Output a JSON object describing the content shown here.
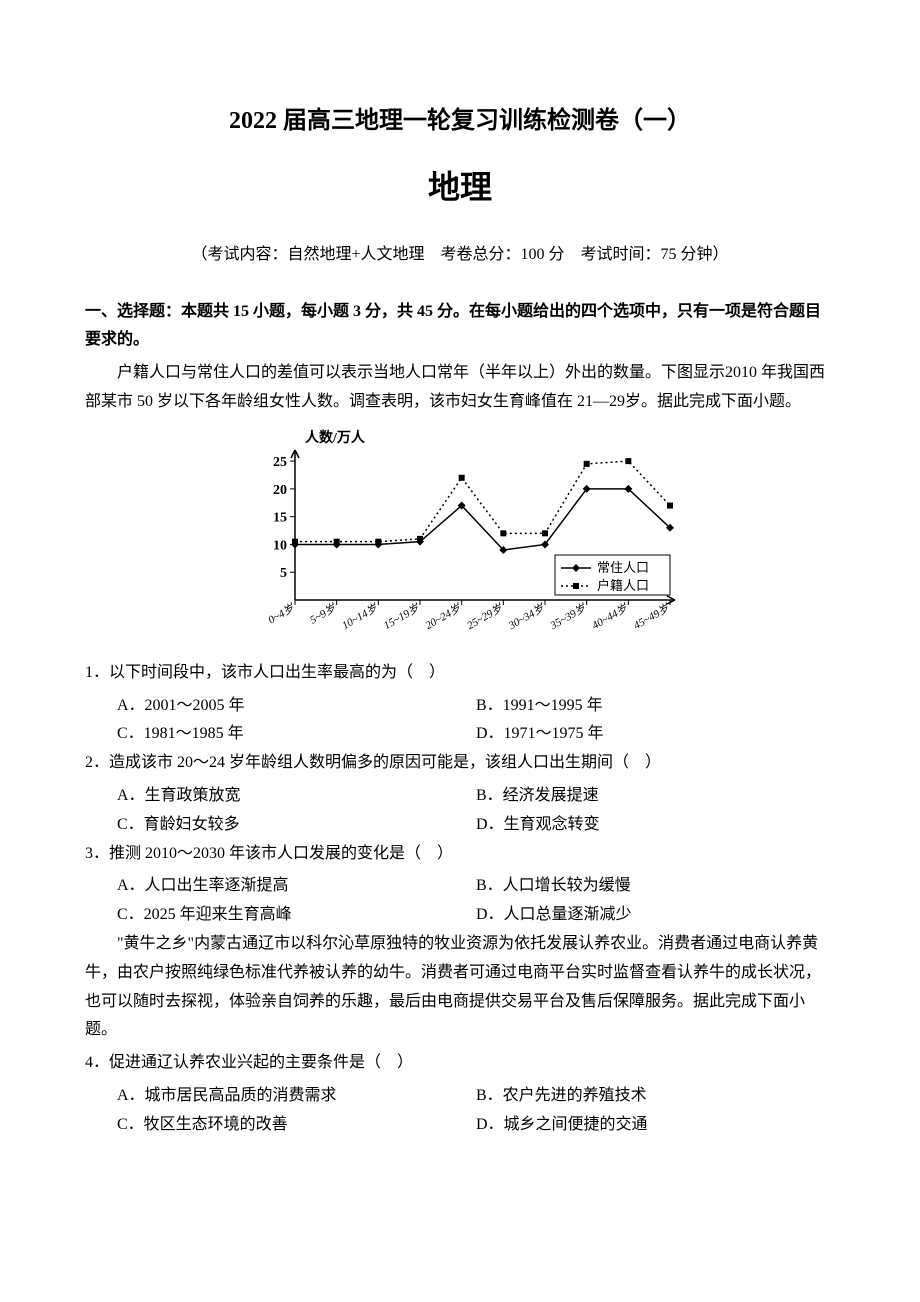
{
  "title_main": "2022 届高三地理一轮复习训练检测卷（一）",
  "title_sub": "地理",
  "exam_info": "（考试内容：自然地理+人文地理　考卷总分：100 分　考试时间：75 分钟）",
  "section1_header": "一、选择题：本题共 15 小题，每小题 3 分，共 45 分。在每小题给出的四个选项中，只有一项是符合题目要求的。",
  "passage1": "户籍人口与常住人口的差值可以表示当地人口常年（半年以上）外出的数量。下图显示2010 年我国西部某市 50 岁以下各年龄组女性人数。调查表明，该市妇女生育峰值在 21—29岁。据此完成下面小题。",
  "chart": {
    "type": "line",
    "y_label": "人数/万人",
    "y_label_fontsize": 14,
    "x_categories": [
      "0~4岁",
      "5~9岁",
      "10~14岁",
      "15~19岁",
      "20~24岁",
      "25~29岁",
      "30~34岁",
      "35~39岁",
      "40~44岁",
      "45~49岁"
    ],
    "x_label_fontsize": 11,
    "y_ticks": [
      5,
      10,
      15,
      20,
      25
    ],
    "ylim": [
      0,
      27
    ],
    "series": [
      {
        "name": "常住人口",
        "values": [
          10,
          10,
          10,
          10.5,
          17,
          9,
          10,
          20,
          20,
          13
        ],
        "color": "#000000",
        "marker": "diamond",
        "line_style": "solid",
        "line_width": 1.5
      },
      {
        "name": "户籍人口",
        "values": [
          10.5,
          10.5,
          10.5,
          11,
          22,
          12,
          12,
          24.5,
          25,
          17
        ],
        "color": "#000000",
        "marker": "square",
        "line_style": "dotted",
        "line_width": 1.5
      }
    ],
    "legend_position": "bottom-right",
    "background_color": "#ffffff",
    "axis_color": "#000000"
  },
  "q1": {
    "text": "1．以下时间段中，该市人口出生率最高的为（　）",
    "A": "A．2001～2005 年",
    "B": "B．1991～1995 年",
    "C": "C．1981～1985 年",
    "D": "D．1971～1975 年"
  },
  "q2": {
    "text": "2．造成该市 20～24 岁年龄组人数明偏多的原因可能是，该组人口出生期间（　）",
    "A": "A．生育政策放宽",
    "B": "B．经济发展提速",
    "C": "C．育龄妇女较多",
    "D": "D．生育观念转变"
  },
  "q3": {
    "text": "3．推测 2010～2030 年该市人口发展的变化是（　）",
    "A": "A．人口出生率逐渐提高",
    "B": "B．人口增长较为缓慢",
    "C": "C．2025 年迎来生育高峰",
    "D": "D．人口总量逐渐减少"
  },
  "passage2": "\"黄牛之乡\"内蒙古通辽市以科尔沁草原独特的牧业资源为依托发展认养农业。消费者通过电商认养黄牛，由农户按照纯绿色标准代养被认养的幼牛。消费者可通过电商平台实时监督查看认养牛的成长状况，也可以随时去探视，体验亲自饲养的乐趣，最后由电商提供交易平台及售后保障服务。据此完成下面小题。",
  "q4": {
    "text": "4．促进通辽认养农业兴起的主要条件是（　）",
    "A": "A．城市居民高品质的消费需求",
    "B": "B．农户先进的养殖技术",
    "C": "C．牧区生态环境的改善",
    "D": "D．城乡之间便捷的交通"
  }
}
